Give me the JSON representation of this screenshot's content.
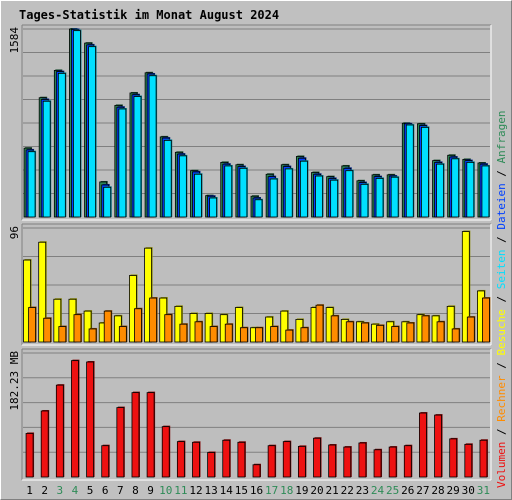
{
  "colors": {
    "background": "#c0c0c0",
    "plot_background": "#bebebe",
    "title": "#0000ff",
    "gridline": "#808080",
    "weekday_label": "#000000",
    "weekend_label": "#2e8b57",
    "anfragen": "#2e8b57",
    "dateien": "#0040ff",
    "seiten": "#00e0ff",
    "besuche": "#ffff00",
    "rechner": "#ff8c00",
    "volumen": "#ee1111"
  },
  "chart_data": {
    "title": "Tages-Statistik im Monat August 2024",
    "x": [
      "1",
      "2",
      "3",
      "4",
      "5",
      "6",
      "7",
      "8",
      "9",
      "10",
      "11",
      "12",
      "13",
      "14",
      "15",
      "16",
      "17",
      "18",
      "19",
      "20",
      "21",
      "22",
      "23",
      "24",
      "25",
      "26",
      "27",
      "28",
      "29",
      "30",
      "31"
    ],
    "weekend_days": [
      "3",
      "4",
      "10",
      "11",
      "17",
      "18",
      "24",
      "25",
      "31"
    ],
    "panels": [
      {
        "type": "bar",
        "ylabel": "1584",
        "ylim": [
          0,
          1584
        ],
        "series": [
          {
            "name": "Anfragen",
            "color_key": "anfragen",
            "values": [
              580,
              1005,
              1235,
              1584,
              1465,
              295,
              940,
              1045,
              1215,
              675,
              545,
              390,
              180,
              460,
              440,
              175,
              360,
              440,
              510,
              375,
              340,
              430,
              305,
              355,
              355,
              790,
              785,
              475,
              520,
              485,
              455
            ]
          },
          {
            "name": "Dateien",
            "color_key": "dateien",
            "values": [
              565,
              990,
              1225,
              1580,
              1450,
              270,
              925,
              1030,
              1205,
              665,
              530,
              380,
              175,
              445,
              425,
              160,
              340,
              425,
              495,
              360,
              325,
              410,
              290,
              340,
              345,
              785,
              770,
              460,
              505,
              475,
              445
            ]
          },
          {
            "name": "Seiten",
            "color_key": "seiten",
            "values": [
              550,
              975,
              1210,
              1570,
              1435,
              250,
              910,
              1015,
              1190,
              645,
              515,
              360,
              160,
              430,
              410,
              145,
              320,
              405,
              470,
              345,
              310,
              390,
              275,
              325,
              335,
              775,
              755,
              445,
              490,
              460,
              430
            ]
          }
        ]
      },
      {
        "type": "bar",
        "ylabel": "96",
        "ylim": [
          0,
          96
        ],
        "series": [
          {
            "name": "Besuche",
            "color_key": "besuche",
            "values": [
              69,
              84,
              36,
              36,
              26,
              16,
              22,
              56,
              79,
              37,
              30,
              24,
              24,
              23,
              29,
              12,
              21,
              26,
              19,
              29,
              29,
              19,
              17,
              15,
              17,
              17,
              23,
              22,
              30,
              93,
              43
            ]
          },
          {
            "name": "Rechner",
            "color_key": "rechner",
            "values": [
              29,
              20,
              13,
              23,
              11,
              26,
              13,
              28,
              37,
              23,
              15,
              17,
              13,
              15,
              12,
              12,
              13,
              10,
              12,
              31,
              22,
              17,
              16,
              14,
              13,
              16,
              22,
              17,
              11,
              21,
              37
            ]
          }
        ]
      },
      {
        "type": "bar",
        "ylabel": "182.23 MB",
        "ylim": [
          0,
          182.23
        ],
        "series": [
          {
            "name": "Volumen",
            "color_key": "volumen",
            "values": [
              64,
              97,
              135,
              171,
              169,
              46,
              102,
              124,
              124,
              74,
              52,
              51,
              36,
              54,
              51,
              18,
              46,
              52,
              45,
              57,
              47,
              44,
              50,
              40,
              44,
              46,
              94,
              91,
              56,
              48,
              54
            ]
          }
        ]
      }
    ],
    "right_labels": [
      "Volumen",
      "Rechner",
      "Besuche",
      "Seiten",
      "Dateien",
      "Anfragen"
    ],
    "right_separator": "/"
  }
}
